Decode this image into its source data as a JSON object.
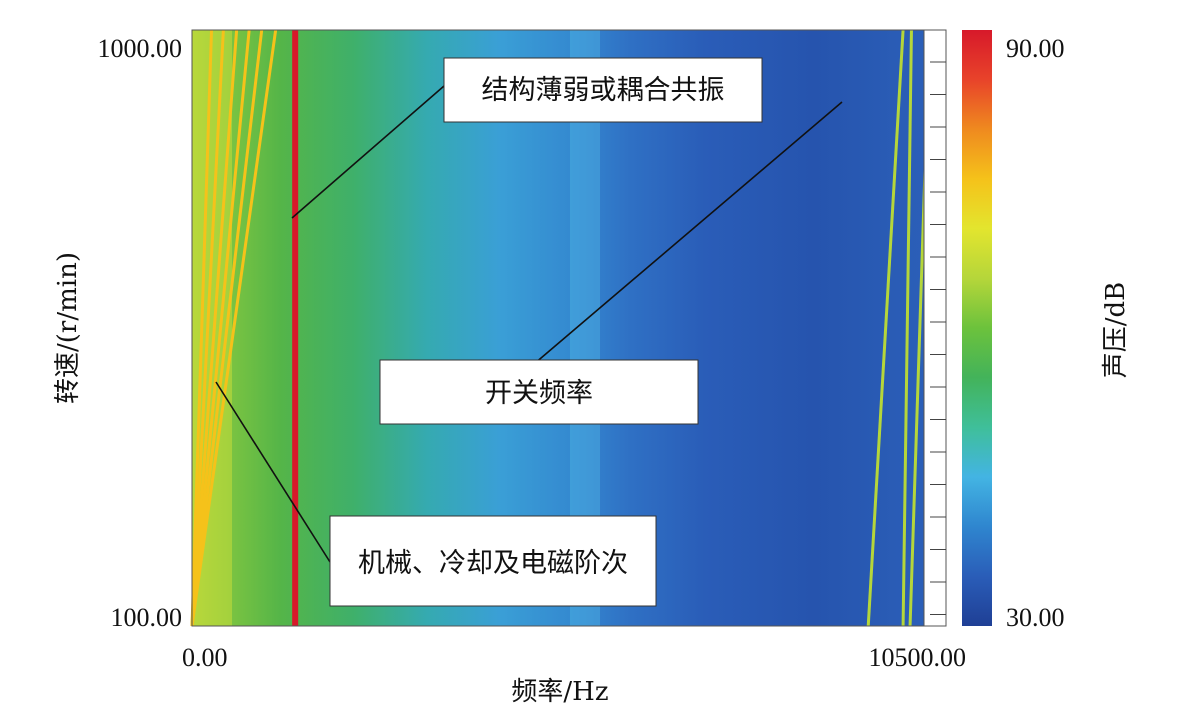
{
  "chart_data": {
    "type": "heatmap",
    "title": "",
    "xlabel": "频率/Hz",
    "ylabel": "转速/(r/min)",
    "xlim": [
      0,
      10500
    ],
    "ylim": [
      100,
      1000
    ],
    "x_tick_labels": [
      "0.00",
      "10500.00"
    ],
    "y_tick_labels": [
      "100.00",
      "1000.00"
    ],
    "colorbar": {
      "label": "声压/dB",
      "min": 30,
      "max": 90,
      "min_label": "30.00",
      "max_label": "90.00",
      "colors": [
        "#1f3f95",
        "#2a5db8",
        "#2f86cf",
        "#43b4e3",
        "#3fbf9a",
        "#43b35a",
        "#6cc23c",
        "#b5d63a",
        "#e3e52e",
        "#f5c21a",
        "#ef8a1f",
        "#e8432a",
        "#d7192a"
      ]
    },
    "series": [
      {
        "value": 90,
        "x": [
          1480,
          1480
        ]
      },
      {
        "value": 76,
        "x": [
          0,
          1200
        ]
      },
      {
        "value": 76,
        "x": [
          0,
          1000
        ]
      },
      {
        "value": 76,
        "x": [
          0,
          820
        ]
      },
      {
        "value": 76,
        "x": [
          0,
          640
        ]
      },
      {
        "value": 76,
        "x": [
          0,
          450
        ]
      },
      {
        "value": 76,
        "x": [
          0,
          280
        ]
      },
      {
        "value": 66,
        "x": [
          9700,
          10200
        ]
      },
      {
        "value": 66,
        "x": [
          10200,
          10320
        ]
      },
      {
        "value": 66,
        "x": [
          10300,
          10580
        ]
      }
    ],
    "annotations": [
      {
        "text": "结构薄弱或耦合共振",
        "target": [
          1480,
          690
        ]
      },
      {
        "text": "开关频率",
        "target": [
          9780,
          870
        ]
      },
      {
        "text": "机械、冷却及电磁阶次",
        "target": [
          380,
          400
        ]
      }
    ]
  }
}
